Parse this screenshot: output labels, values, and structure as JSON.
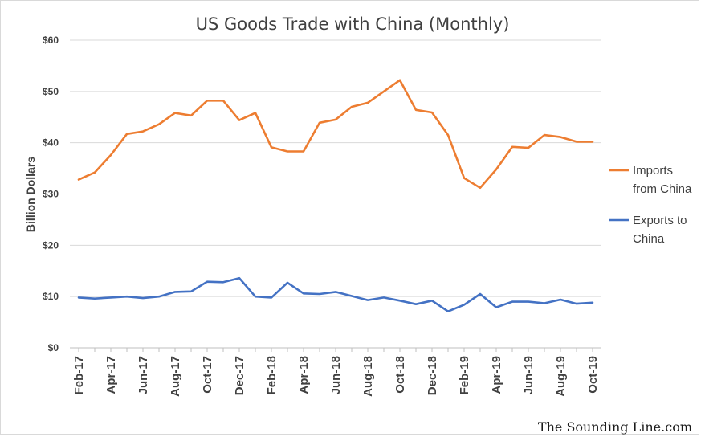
{
  "chart_data": {
    "type": "line",
    "title": "US Goods Trade with China (Monthly)",
    "ylabel": "Billion Dollars",
    "xlabel": "",
    "ylim": [
      0,
      60
    ],
    "yticks": [
      "$0",
      "$10",
      "$20",
      "$30",
      "$40",
      "$50",
      "$60"
    ],
    "ytick_values": [
      0,
      10,
      20,
      30,
      40,
      50,
      60
    ],
    "grid": true,
    "legend_position": "right",
    "categories": [
      "Feb-17",
      "Mar-17",
      "Apr-17",
      "May-17",
      "Jun-17",
      "Jul-17",
      "Aug-17",
      "Sep-17",
      "Oct-17",
      "Nov-17",
      "Dec-17",
      "Jan-18",
      "Feb-18",
      "Mar-18",
      "Apr-18",
      "May-18",
      "Jun-18",
      "Jul-18",
      "Aug-18",
      "Sep-18",
      "Oct-18",
      "Nov-18",
      "Dec-18",
      "Jan-19",
      "Feb-19",
      "Mar-19",
      "Apr-19",
      "May-19",
      "Jun-19",
      "Jul-19",
      "Aug-19",
      "Sep-19",
      "Oct-19"
    ],
    "tick_labels": [
      "Feb-17",
      "Apr-17",
      "Jun-17",
      "Aug-17",
      "Oct-17",
      "Dec-17",
      "Feb-18",
      "Apr-18",
      "Jun-18",
      "Aug-18",
      "Oct-18",
      "Dec-18",
      "Feb-19",
      "Apr-19",
      "Jun-19",
      "Aug-19",
      "Oct-19"
    ],
    "series": [
      {
        "name": "Imports from China",
        "legend_lines": [
          "Imports",
          "from China"
        ],
        "color": "#ed7d31",
        "values": [
          32.8,
          34.2,
          37.6,
          41.7,
          42.2,
          43.6,
          45.8,
          45.3,
          48.2,
          48.2,
          44.4,
          45.8,
          39.1,
          38.3,
          38.3,
          43.9,
          44.5,
          47.0,
          47.8,
          50.0,
          52.2,
          46.4,
          45.9,
          41.5,
          33.1,
          31.2,
          34.8,
          39.2,
          39.0,
          41.5,
          41.1,
          40.2,
          40.2
        ]
      },
      {
        "name": "Exports to China",
        "legend_lines": [
          "Exports to",
          "China"
        ],
        "color": "#4472c4",
        "values": [
          9.8,
          9.6,
          9.8,
          10.0,
          9.7,
          10.0,
          10.9,
          11.0,
          12.9,
          12.8,
          13.6,
          10.0,
          9.8,
          12.7,
          10.6,
          10.5,
          10.9,
          10.1,
          9.3,
          9.8,
          9.2,
          8.5,
          9.2,
          7.1,
          8.4,
          10.5,
          7.9,
          9.0,
          9.0,
          8.7,
          9.4,
          8.6,
          8.8
        ]
      }
    ]
  },
  "credit": "The Sounding Line.com"
}
